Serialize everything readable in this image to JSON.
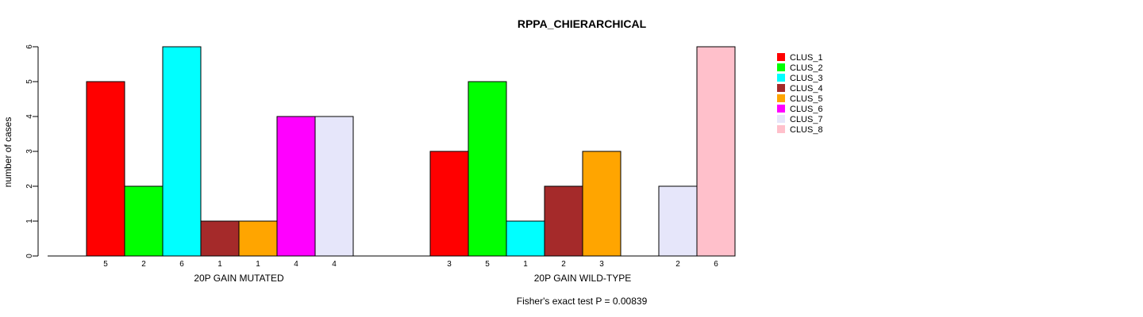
{
  "chart_data": {
    "type": "bar",
    "title": "RPPA_CHIERARCHICAL",
    "ylabel": "number of cases",
    "ylim": [
      0,
      6
    ],
    "yticks": [
      0,
      1,
      2,
      3,
      4,
      5,
      6
    ],
    "footer": "Fisher's exact test P = 0.00839",
    "series": [
      {
        "name": "CLUS_1",
        "color": "#ff0000"
      },
      {
        "name": "CLUS_2",
        "color": "#00ff00"
      },
      {
        "name": "CLUS_3",
        "color": "#00ffff"
      },
      {
        "name": "CLUS_4",
        "color": "#a52a2a"
      },
      {
        "name": "CLUS_5",
        "color": "#ffa500"
      },
      {
        "name": "CLUS_6",
        "color": "#ff00ff"
      },
      {
        "name": "CLUS_7",
        "color": "#e6e6fa"
      },
      {
        "name": "CLUS_8",
        "color": "#ffc0cb"
      }
    ],
    "groups": [
      {
        "label": "20P GAIN MUTATED",
        "values": [
          5,
          2,
          6,
          1,
          1,
          4,
          4,
          0
        ]
      },
      {
        "label": "20P GAIN WILD-TYPE",
        "values": [
          3,
          5,
          1,
          2,
          3,
          0,
          2,
          6
        ]
      }
    ],
    "legend_position": "right"
  }
}
